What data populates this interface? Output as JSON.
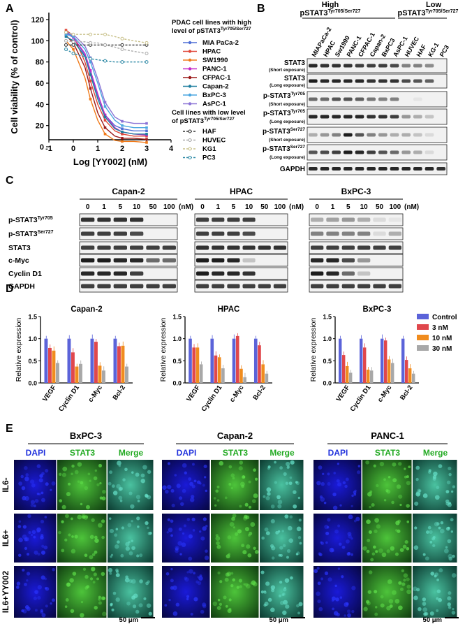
{
  "panels": {
    "A": "A",
    "B": "B",
    "C": "C",
    "D": "D",
    "E": "E"
  },
  "panelA": {
    "ylabel": "Cell viability (% of control)",
    "xlabel": "Log [YY002] (nM)",
    "yticks": [
      "0",
      "20",
      "40",
      "60",
      "80",
      "100",
      "120"
    ],
    "xticks": [
      "-1",
      "0",
      "1",
      "2",
      "3",
      "4"
    ],
    "legend_high_title1": "PDAC cell lines with high",
    "legend_high_title2": "level of pSTAT3",
    "legend_high_sup": "Tyr705/Ser727",
    "legend_low_title1": "Cell lines with low level",
    "legend_low_title2": "of pSTAT3",
    "legend_low_sup": "Tyr705/Ser727",
    "high_lines": [
      {
        "name": "MIA PaCa-2",
        "color": "#4f6fd6"
      },
      {
        "name": "HPAC",
        "color": "#e0473a"
      },
      {
        "name": "SW1990",
        "color": "#f07a1a"
      },
      {
        "name": "PANC-1",
        "color": "#c428c8"
      },
      {
        "name": "CFPAC-1",
        "color": "#9b1a1a"
      },
      {
        "name": "Capan-2",
        "color": "#1f7f9f"
      },
      {
        "name": "BxPC-3",
        "color": "#4aa6e0"
      },
      {
        "name": "AsPC-1",
        "color": "#8a73d6"
      }
    ],
    "low_lines": [
      {
        "name": "HAF",
        "color": "#333333"
      },
      {
        "name": "HUVEC",
        "color": "#aaaaaa"
      },
      {
        "name": "KG1",
        "color": "#c8c089"
      },
      {
        "name": "PC3",
        "color": "#2f8aa6"
      }
    ]
  },
  "chart_data": [
    {
      "type": "line",
      "title": "",
      "xlabel": "Log [YY002] (nM)",
      "ylabel": "Cell viability (% of control)",
      "xlim": [
        -1,
        4
      ],
      "ylim": [
        0,
        120
      ],
      "x": [
        -0.3,
        0,
        0.477,
        0.699,
        1,
        1.3,
        1.699,
        2,
        2.477,
        3
      ],
      "series": [
        {
          "name": "MIA PaCa-2",
          "values": [
            108,
            104,
            86,
            70,
            48,
            30,
            20,
            17,
            15,
            15
          ]
        },
        {
          "name": "HPAC",
          "values": [
            110,
            105,
            80,
            62,
            40,
            25,
            15,
            12,
            10,
            10
          ]
        },
        {
          "name": "SW1990",
          "values": [
            100,
            92,
            65,
            45,
            25,
            12,
            6,
            5,
            5,
            4
          ]
        },
        {
          "name": "PANC-1",
          "values": [
            107,
            103,
            88,
            72,
            50,
            30,
            18,
            14,
            12,
            11
          ]
        },
        {
          "name": "CFPAC-1",
          "values": [
            105,
            98,
            75,
            55,
            32,
            18,
            10,
            8,
            8,
            7
          ]
        },
        {
          "name": "Capan-2",
          "values": [
            104,
            100,
            85,
            68,
            45,
            28,
            17,
            14,
            12,
            12
          ]
        },
        {
          "name": "BxPC-3",
          "values": [
            106,
            104,
            92,
            80,
            60,
            38,
            25,
            20,
            18,
            18
          ]
        },
        {
          "name": "AsPC-1",
          "values": [
            108,
            106,
            95,
            84,
            64,
            42,
            28,
            24,
            22,
            22
          ]
        },
        {
          "name": "HAF",
          "values": [
            96,
            96,
            96,
            96,
            96,
            96,
            96,
            96,
            96,
            96
          ]
        },
        {
          "name": "HUVEC",
          "values": [
            100,
            99,
            99,
            98,
            98,
            96,
            94,
            92,
            90,
            88
          ]
        },
        {
          "name": "KG1",
          "values": [
            108,
            106,
            106,
            106,
            106,
            106,
            104,
            102,
            100,
            98
          ]
        },
        {
          "name": "PC3",
          "values": [
            92,
            88,
            85,
            83,
            82,
            81,
            80,
            80,
            80,
            80
          ]
        }
      ]
    },
    {
      "type": "bar",
      "title": "Capan-2",
      "ylabel": "Relative expression",
      "ylim": [
        0,
        1.5
      ],
      "categories": [
        "VEGF",
        "Cyclin D1",
        "c-Myc",
        "Bcl-2"
      ],
      "series": [
        {
          "name": "Control",
          "values": [
            1.0,
            1.0,
            1.0,
            1.0
          ]
        },
        {
          "name": "3 nM",
          "values": [
            0.79,
            0.69,
            0.93,
            0.83
          ]
        },
        {
          "name": "10 nM",
          "values": [
            0.73,
            0.37,
            0.39,
            0.84
          ]
        },
        {
          "name": "30 nM",
          "values": [
            0.45,
            0.43,
            0.28,
            0.37
          ]
        }
      ]
    },
    {
      "type": "bar",
      "title": "HPAC",
      "ylabel": "Relative expression",
      "ylim": [
        0,
        1.5
      ],
      "categories": [
        "VEGF",
        "Cyclin D1",
        "c-Myc",
        "Bcl-2"
      ],
      "series": [
        {
          "name": "Control",
          "values": [
            1.0,
            1.0,
            1.0,
            1.0
          ]
        },
        {
          "name": "3 nM",
          "values": [
            0.8,
            0.62,
            1.06,
            0.85
          ]
        },
        {
          "name": "10 nM",
          "values": [
            0.8,
            0.58,
            0.32,
            0.42
          ]
        },
        {
          "name": "30 nM",
          "values": [
            0.42,
            0.33,
            0.13,
            0.21
          ]
        }
      ]
    },
    {
      "type": "bar",
      "title": "BxPC-3",
      "ylabel": "Relative expression",
      "ylim": [
        0,
        1.5
      ],
      "categories": [
        "VEGF",
        "Cyclin D1",
        "c-Myc",
        "Bcl-2"
      ],
      "series": [
        {
          "name": "Control",
          "values": [
            1.0,
            1.0,
            1.0,
            1.0
          ]
        },
        {
          "name": "3 nM",
          "values": [
            0.63,
            0.8,
            0.96,
            0.52
          ]
        },
        {
          "name": "10 nM",
          "values": [
            0.38,
            0.3,
            0.53,
            0.33
          ]
        },
        {
          "name": "30 nM",
          "values": [
            0.23,
            0.28,
            0.45,
            0.21
          ]
        }
      ]
    }
  ],
  "bar_colors": [
    "#5b63d9",
    "#e0474c",
    "#f08c1e",
    "#a8a8a8"
  ],
  "panelB": {
    "group_high": "High",
    "group_high_sub": "pSTAT3",
    "group_high_sup": "Tyr705/Ser727",
    "group_low": "Low",
    "group_low_sub": "pSTAT3",
    "group_low_sup": "Tyr705/Ser727",
    "lanes": [
      "MIAPaCa-2",
      "HPAC",
      "Sw1990",
      "PANC-1",
      "CFPAC-1",
      "Capan-2",
      "BxPC3",
      "AsPC-1",
      "HUVEC",
      "HAF",
      "KG-1",
      "PC3"
    ],
    "rows": [
      {
        "main": "STAT3",
        "sup": "",
        "sub": "(Short exposure)"
      },
      {
        "main": "STAT3",
        "sup": "",
        "sub": "(Long exposure)"
      },
      {
        "main": "p-STAT3",
        "sup": "Tyr705",
        "sub": "(Short exposure)"
      },
      {
        "main": "p-STAT3",
        "sup": "Tyr705",
        "sub": "(Long exposure)"
      },
      {
        "main": "p-STAT3",
        "sup": "Ser727",
        "sub": "(Short exposure)"
      },
      {
        "main": "p-STAT3",
        "sup": "Ser727",
        "sub": "(Long exposure)"
      },
      {
        "main": "GAPDH",
        "sup": "",
        "sub": ""
      }
    ]
  },
  "panelC": {
    "cells": [
      "Capan-2",
      "HPAC",
      "BxPC-3"
    ],
    "doses": [
      "0",
      "1",
      "5",
      "10",
      "50",
      "100"
    ],
    "unit": "(nM)",
    "rows": [
      {
        "main": "p-STAT3",
        "sup": "Tyr705"
      },
      {
        "main": "p-STAT3",
        "sup": "Ser727"
      },
      {
        "main": "STAT3",
        "sup": ""
      },
      {
        "main": "c-Myc",
        "sup": ""
      },
      {
        "main": "Cyclin D1",
        "sup": ""
      },
      {
        "main": "GAPDH",
        "sup": ""
      }
    ]
  },
  "panelD": {
    "yticks": [
      "0.0",
      "0.5",
      "1.0",
      "1.5"
    ]
  },
  "panelE": {
    "cells": [
      "BxPC-3",
      "Capan-2",
      "PANC-1"
    ],
    "channels": [
      "DAPI",
      "STAT3",
      "Merge"
    ],
    "conditions": [
      "IL6-",
      "IL6+",
      "IL6+YY002"
    ],
    "scale": "50 μm",
    "channel_colors": {
      "DAPI": "#2233dd",
      "STAT3": "#22aa22",
      "Merge": "#22aa22"
    }
  }
}
